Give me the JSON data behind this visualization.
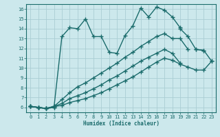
{
  "bg_color": "#cce8ec",
  "grid_color": "#aacdd4",
  "line_color": "#1a6b6b",
  "marker_style": "+",
  "marker_size": 4,
  "line_width": 1.0,
  "xlabel": "Humidex (Indice chaleur)",
  "xlim": [
    -0.5,
    23.5
  ],
  "ylim": [
    5.5,
    16.5
  ],
  "yticks": [
    6,
    7,
    8,
    9,
    10,
    11,
    12,
    13,
    14,
    15,
    16
  ],
  "xticks": [
    0,
    1,
    2,
    3,
    4,
    5,
    6,
    7,
    8,
    9,
    10,
    11,
    12,
    13,
    14,
    15,
    16,
    17,
    18,
    19,
    20,
    21,
    22,
    23
  ],
  "curves": [
    [
      6.1,
      6.0,
      5.9,
      6.0,
      13.2,
      14.1,
      14.0,
      15.0,
      13.2,
      13.2,
      11.6,
      11.5,
      13.3,
      14.3,
      16.1,
      15.2,
      16.2,
      15.9,
      15.2,
      14.1,
      null,
      11.9,
      11.8,
      null
    ],
    [
      6.1,
      6.0,
      5.9,
      6.0,
      null,
      null,
      null,
      null,
      null,
      null,
      null,
      null,
      null,
      null,
      null,
      null,
      null,
      null,
      null,
      14.0,
      13.2,
      11.9,
      11.8,
      10.7
    ],
    [
      6.1,
      6.0,
      5.9,
      6.1,
      6.8,
      7.5,
      8.1,
      8.5,
      9.0,
      9.5,
      10.0,
      10.5,
      11.1,
      11.6,
      12.2,
      12.7,
      13.2,
      13.5,
      13.0,
      13.0,
      11.9,
      null,
      null,
      null
    ],
    [
      6.1,
      6.0,
      5.9,
      6.1,
      6.4,
      6.9,
      7.2,
      7.5,
      7.9,
      8.3,
      8.8,
      9.2,
      9.7,
      10.2,
      10.7,
      11.1,
      11.5,
      11.9,
      11.5,
      10.5,
      null,
      null,
      null,
      null
    ],
    [
      6.1,
      6.0,
      5.9,
      6.1,
      6.2,
      6.5,
      6.7,
      6.9,
      7.2,
      7.5,
      7.9,
      8.3,
      8.7,
      9.1,
      9.6,
      10.1,
      10.6,
      11.0,
      10.8,
      10.4,
      10.1,
      9.8,
      9.8,
      10.7
    ]
  ]
}
